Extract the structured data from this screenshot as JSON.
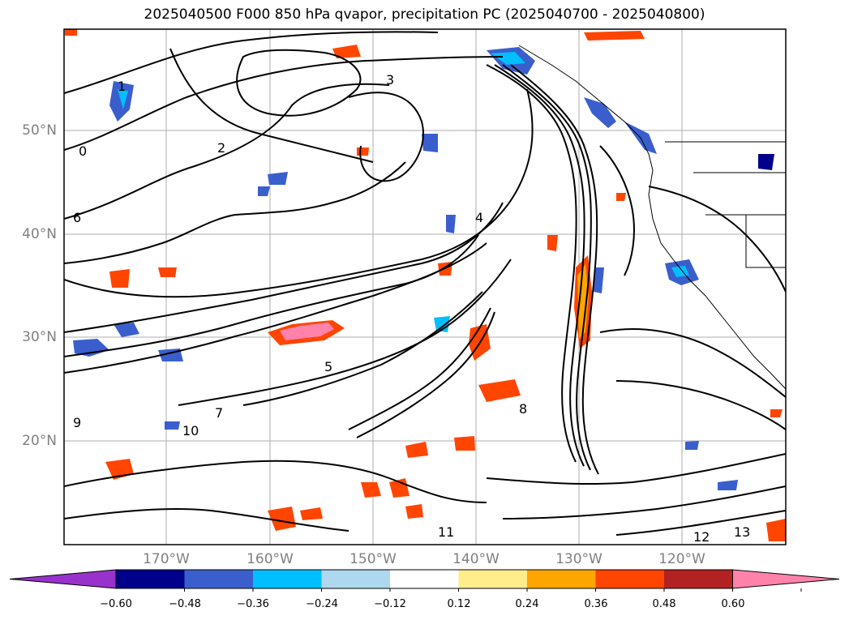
{
  "title": "2025040500 F000 850 hPa qvapor, precipitation PC (2025040700 - 2025040800)",
  "latitude_labels": [
    "50°N",
    "40°N",
    "30°N",
    "20°N"
  ],
  "longitude_labels": [
    "170°W",
    "160°W",
    "150°W",
    "140°W",
    "130°W",
    "120°W"
  ],
  "colorbar": {
    "tick_labels": [
      "−0.60",
      "−0.48",
      "−0.36",
      "−0.24",
      "−0.12",
      "0.12",
      "0.24",
      "0.36",
      "0.48",
      "0.60"
    ],
    "colors": [
      "#9932CC",
      "#00008B",
      "#3A5FCD",
      "#00BFFF",
      "#ADD8F0",
      "#FFFFFF",
      "#FFEC8B",
      "#FFA500",
      "#FF4500",
      "#B22222",
      "#FF82AB"
    ],
    "extend": "both"
  },
  "contour_labels": [
    "0",
    "1",
    "2",
    "3",
    "4",
    "5",
    "6",
    "7",
    "8",
    "9",
    "10",
    "11",
    "12",
    "13"
  ],
  "colors": {
    "contour": "#000000",
    "grid": "#808080",
    "axis_label": "#808080"
  }
}
